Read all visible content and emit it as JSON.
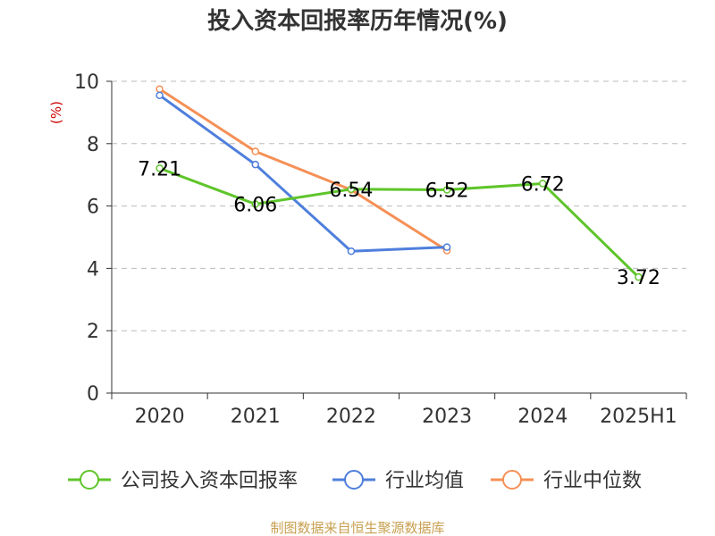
{
  "chart_data": {
    "type": "line",
    "title": "投入资本回报率历年情况(%)",
    "ylabel": "(%)",
    "xlabel": "",
    "categories": [
      "2020",
      "2021",
      "2022",
      "2023",
      "2024",
      "2025H1"
    ],
    "ylim": [
      0,
      10
    ],
    "yticks": [
      0,
      2,
      4,
      6,
      8,
      10
    ],
    "grid": "horizontal-dashed",
    "legend_position": "bottom",
    "series": [
      {
        "name": "公司投入资本回报率",
        "color": "#5ec52a",
        "values": [
          7.21,
          6.06,
          6.54,
          6.52,
          6.72,
          3.72
        ],
        "labels": [
          "7.21",
          "6.06",
          "6.54",
          "6.52",
          "6.72",
          "3.72"
        ]
      },
      {
        "name": "行业均值",
        "color": "#4f7fdc",
        "values": [
          9.55,
          7.33,
          4.55,
          4.68,
          null,
          null
        ]
      },
      {
        "name": "行业中位数",
        "color": "#f59056",
        "values": [
          9.75,
          7.75,
          6.52,
          4.57,
          null,
          null
        ]
      }
    ]
  },
  "footer": {
    "source": "制图数据来自恒生聚源数据库"
  }
}
